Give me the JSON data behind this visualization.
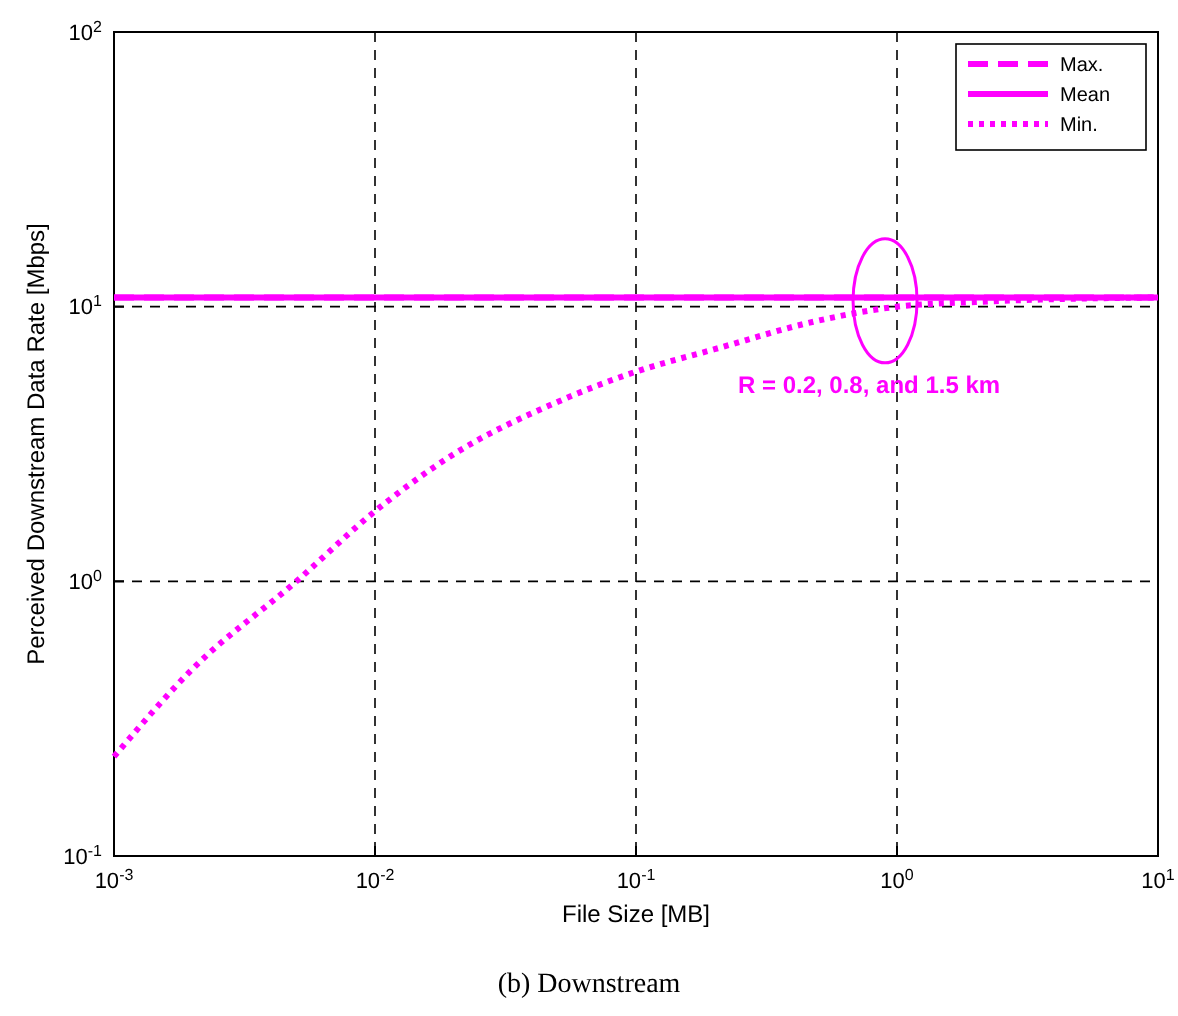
{
  "chart_data": {
    "type": "line",
    "title": "(b) Downstream",
    "xlabel": "File Size [MB]",
    "ylabel": "Perceived Downstream Data Rate [Mbps]",
    "log": "xy",
    "xlim": [
      0.001,
      10
    ],
    "ylim": [
      0.1,
      100
    ],
    "xticks": [
      {
        "value": 0.001,
        "label": "10$^{-3}$"
      },
      {
        "value": 0.01,
        "label": "10$^{-2}$"
      },
      {
        "value": 0.1,
        "label": "10$^{-1}$"
      },
      {
        "value": 1,
        "label": "10$^{0}$"
      },
      {
        "value": 10,
        "label": "10$^{1}$"
      }
    ],
    "yticks": [
      {
        "value": 0.1,
        "label": "10$^{-1}$"
      },
      {
        "value": 1,
        "label": "10$^{0}$"
      },
      {
        "value": 10,
        "label": "10$^{1}$"
      },
      {
        "value": 100,
        "label": "10$^{2}$"
      }
    ],
    "grid": true,
    "legend": "top right",
    "marker": "none",
    "x": [
      0.001,
      0.002,
      0.005,
      0.01,
      0.02,
      0.05,
      0.1,
      0.2,
      0.5,
      1,
      2,
      5,
      10
    ],
    "series": [
      {
        "name": "Max.",
        "color": "#ff00ff",
        "line_style": "dashed",
        "values": [
          10.8,
          10.8,
          10.8,
          10.8,
          10.8,
          10.8,
          10.8,
          10.8,
          10.8,
          10.8,
          10.8,
          10.8,
          10.8
        ]
      },
      {
        "name": "Mean",
        "color": "#ff00ff",
        "line_style": "solid",
        "values": [
          10.8,
          10.8,
          10.8,
          10.8,
          10.8,
          10.8,
          10.8,
          10.8,
          10.8,
          10.8,
          10.8,
          10.8,
          10.8
        ]
      },
      {
        "name": "Min.",
        "color": "#ff00ff",
        "line_style": "dotted",
        "values": [
          0.23,
          0.48,
          1.0,
          1.8,
          2.9,
          4.5,
          5.8,
          7.0,
          8.9,
          10.0,
          10.4,
          10.7,
          10.8
        ]
      }
    ],
    "annotations": [
      {
        "text": "R = 0.2, 0.8, and 1.5 km",
        "x": 0.9,
        "y": 10.5
      }
    ]
  }
}
